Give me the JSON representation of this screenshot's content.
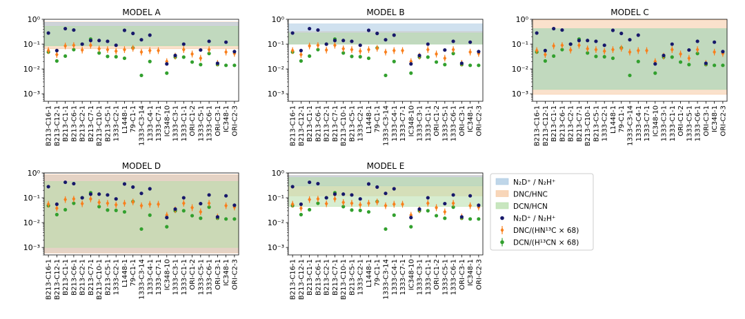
{
  "figure": {
    "legend": {
      "entries": [
        {
          "label": "N₂D⁺ / N₂H⁺",
          "kind": "band",
          "color": "#aac8e2"
        },
        {
          "label": "DNC/HNC",
          "kind": "band",
          "color": "#f6c8a2"
        },
        {
          "label": "DCN/HCN",
          "kind": "band",
          "color": "#b6deaa"
        },
        {
          "label": "N₂D⁺ / N₂H⁺",
          "kind": "marker",
          "color": "#17186a"
        },
        {
          "label": "DNC/(HN¹³C × 68)",
          "kind": "marker",
          "color": "#f97f1c"
        },
        {
          "label": "DCN/(H¹³CN × 68)",
          "kind": "marker",
          "color": "#32a02e"
        }
      ]
    }
  },
  "chart_data": {
    "type": "scatter",
    "yscale": "log",
    "ylim": [
      0.0005,
      1
    ],
    "yticks": [
      {
        "value": 1,
        "label": "10⁰"
      },
      {
        "value": 0.1,
        "label": "10⁻¹"
      },
      {
        "value": 0.01,
        "label": "10⁻²"
      },
      {
        "value": 0.001,
        "label": "10⁻³"
      }
    ],
    "band_colors": {
      "n2d": "#aac8e2",
      "dnc": "#f6c8a2",
      "dcn": "#b6deaa"
    },
    "band_overlap_color": "#d4c3ad",
    "series": [
      {
        "key": "n2d",
        "name": "N₂D⁺ / N₂H⁺",
        "color": "#17186a",
        "points": [
          {
            "cat": "B213-C16-1",
            "value": 0.28
          },
          {
            "cat": "B213-C12-1",
            "value": 0.055
          },
          {
            "cat": "B213-C1-1",
            "value": 0.42
          },
          {
            "cat": "B213-C6-1",
            "value": 0.37
          },
          {
            "cat": "B213-C2-1",
            "value": 0.1
          },
          {
            "cat": "B213-C7-1",
            "value": 0.14
          },
          {
            "cat": "B213-C10-1",
            "value": 0.14
          },
          {
            "cat": "B213-C5-1",
            "value": 0.13
          },
          {
            "cat": "1333-C2-1",
            "value": 0.09
          },
          {
            "cat": "L1448-1",
            "value": 0.36
          },
          {
            "cat": "79-C1-1",
            "value": 0.27
          },
          {
            "cat": "1333-C3-14",
            "value": 0.15
          },
          {
            "cat": "1333-C4-1",
            "value": 0.23
          },
          {
            "cat": "IC348-10",
            "value": 0.016
          },
          {
            "cat": "1333-C3-1",
            "value": 0.035
          },
          {
            "cat": "1333-C1-1",
            "value": 0.1
          },
          {
            "cat": "1333-C5-1",
            "value": 0.058
          },
          {
            "cat": "1333-C6-1",
            "value": 0.13
          },
          {
            "cat": "ORI-C3-1",
            "value": 0.017
          },
          {
            "cat": "IC348-1",
            "value": 0.12
          },
          {
            "cat": "ORI-C2-3",
            "value": 0.05
          }
        ]
      },
      {
        "key": "dnc",
        "name": "DNC/(HN¹³C × 68)",
        "color": "#f97f1c",
        "points": [
          {
            "cat": "B213-C16-1",
            "value": 0.055,
            "err": [
              0.04,
              0.075
            ]
          },
          {
            "cat": "B213-C12-1",
            "value": 0.038,
            "err": [
              0.028,
              0.052
            ]
          },
          {
            "cat": "B213-C1-1",
            "value": 0.085,
            "err": [
              0.062,
              0.115
            ]
          },
          {
            "cat": "B213-C6-1",
            "value": 0.09,
            "err": [
              0.066,
              0.12
            ]
          },
          {
            "cat": "B213-C2-1",
            "value": 0.058,
            "err": [
              0.042,
              0.078
            ]
          },
          {
            "cat": "B213-C7-1",
            "value": 0.09,
            "err": [
              0.066,
              0.12
            ]
          },
          {
            "cat": "B213-C10-1",
            "value": 0.065,
            "err": [
              0.048,
              0.088
            ]
          },
          {
            "cat": "B213-C5-1",
            "value": 0.06,
            "err": [
              0.044,
              0.082
            ]
          },
          {
            "cat": "1333-C2-1",
            "value": 0.052,
            "err": [
              0.038,
              0.07
            ]
          },
          {
            "cat": "L1448-1",
            "value": 0.06,
            "err": [
              0.044,
              0.082
            ]
          },
          {
            "cat": "79-C1-1",
            "value": 0.068,
            "err": [
              0.05,
              0.092
            ]
          },
          {
            "cat": "1333-C3-14",
            "value": 0.048,
            "err": [
              0.035,
              0.065
            ]
          },
          {
            "cat": "1333-C4-1",
            "value": 0.055,
            "err": [
              0.04,
              0.075
            ]
          },
          {
            "cat": "1333-C7-1",
            "value": 0.055,
            "err": [
              0.04,
              0.075
            ]
          },
          {
            "cat": "IC348-10",
            "value": 0.02,
            "err": [
              0.015,
              0.027
            ]
          },
          {
            "cat": "1333-C3-1",
            "value": 0.033,
            "err": [
              0.024,
              0.045
            ]
          },
          {
            "cat": "1333-C1-1",
            "value": 0.06,
            "err": [
              0.044,
              0.082
            ]
          },
          {
            "cat": "ORI-C1-2",
            "value": 0.04,
            "err": [
              0.029,
              0.055
            ]
          },
          {
            "cat": "1333-C5-1",
            "value": 0.027,
            "err": [
              0.02,
              0.037
            ]
          },
          {
            "cat": "1333-C6-1",
            "value": 0.06,
            "err": [
              0.044,
              0.082
            ]
          },
          {
            "cat": "ORI-C3-1",
            "value": 0.017,
            "err": [
              0.013,
              0.023
            ]
          },
          {
            "cat": "IC348-1",
            "value": 0.048,
            "err": [
              0.035,
              0.065
            ]
          },
          {
            "cat": "ORI-C2-3",
            "value": 0.042,
            "err": [
              0.031,
              0.057
            ]
          }
        ]
      },
      {
        "key": "dcn",
        "name": "DCN/(H¹³CN × 68)",
        "color": "#32a02e",
        "points": [
          {
            "cat": "B213-C16-1",
            "value": 0.048
          },
          {
            "cat": "B213-C12-1",
            "value": 0.021
          },
          {
            "cat": "B213-C1-1",
            "value": 0.033
          },
          {
            "cat": "B213-C6-1",
            "value": 0.06
          },
          {
            "cat": "B213-C2-1",
            "value": 0.1
          },
          {
            "cat": "B213-C7-1",
            "value": 0.16
          },
          {
            "cat": "B213-C10-1",
            "value": 0.044
          },
          {
            "cat": "B213-C5-1",
            "value": 0.032
          },
          {
            "cat": "1333-C2-1",
            "value": 0.031
          },
          {
            "cat": "L1448-1",
            "value": 0.027
          },
          {
            "cat": "79-C1-1",
            "value": 0.07
          },
          {
            "cat": "1333-C3-14",
            "value": 0.0055
          },
          {
            "cat": "1333-C4-1",
            "value": 0.02
          },
          {
            "cat": "IC348-10",
            "value": 0.0068
          },
          {
            "cat": "1333-C3-1",
            "value": 0.03
          },
          {
            "cat": "1333-C1-1",
            "value": 0.03
          },
          {
            "cat": "ORI-C1-2",
            "value": 0.019
          },
          {
            "cat": "1333-C5-1",
            "value": 0.015
          },
          {
            "cat": "1333-C6-1",
            "value": 0.042
          },
          {
            "cat": "ORI-C3-1",
            "value": 0.015
          },
          {
            "cat": "IC348-1",
            "value": 0.014
          },
          {
            "cat": "ORI-C2-3",
            "value": 0.014
          }
        ]
      }
    ],
    "panels": [
      {
        "title": "MODEL A",
        "bands": [
          {
            "key": "dnc",
            "range": [
              0.065,
              0.78
            ]
          },
          {
            "key": "n2d",
            "range": [
              0.09,
              0.75
            ]
          },
          {
            "key": "dcn",
            "range": [
              0.085,
              0.52
            ]
          }
        ],
        "categories": [
          "B213-C16-1",
          "B213-C12-1",
          "B213-C1-1",
          "B213-C6-1",
          "B213-C2-1",
          "B213-C7-1",
          "B213-C10-1",
          "B213-C5-1",
          "1333-C2-1",
          "L1448-1",
          "79-C1-1",
          "1333-C3-14",
          "1333-C4-1",
          "1333-C7-1",
          "IC348-10",
          "1333-C3-1",
          "1333-C1-1",
          "ORI-C1-2",
          "1333-C5-1",
          "1333-C6-1",
          "ORI-C3-1",
          "IC348-1",
          "ORI-C2-3"
        ]
      },
      {
        "title": "MODEL B",
        "bands": [
          {
            "key": "dnc",
            "range": [
              0.1,
              0.32
            ]
          },
          {
            "key": "n2d",
            "range": [
              0.1,
              0.65
            ]
          },
          {
            "key": "dcn",
            "range": [
              0.1,
              0.28
            ]
          }
        ],
        "categories": [
          "B213-C16-1",
          "B213-C12-1",
          "B213-C1-1",
          "B213-C6-1",
          "B213-C2-1",
          "B213-C7-1",
          "B213-C10-1",
          "B213-C5-1",
          "1333-C2-1",
          "L1448-1",
          "79-C1-1",
          "1333-C3-14",
          "1333-C4-1",
          "1333-C7-1",
          "IC348-10",
          "1333-C3-1",
          "1333-C1-1",
          "ORI-C1-2",
          "1333-C5-1",
          "1333-C6-1",
          "ORI-C3-1",
          "IC348-1",
          "ORI-C2-3"
        ]
      },
      {
        "title": "MODEL C",
        "bands": [
          {
            "key": "dnc",
            "range": [
              0.00095,
              0.95
            ]
          },
          {
            "key": "n2d",
            "range": [
              0.0015,
              0.42
            ]
          },
          {
            "key": "dcn",
            "range": [
              0.0015,
              0.42
            ]
          }
        ],
        "categories": [
          "B213-C16-1",
          "B213-C12-1",
          "B213-C1-1",
          "B213-C6-1",
          "B213-C2-1",
          "B213-C7-1",
          "B213-C10-1",
          "B213-C5-1",
          "1333-C2-1",
          "L1448-1",
          "79-C1-1",
          "1333-C3-14",
          "1333-C4-1",
          "1333-C7-1",
          "IC348-10",
          "1333-C3-1",
          "1333-C1-1",
          "ORI-C1-2",
          "1333-C5-1",
          "1333-C6-1",
          "ORI-C3-1",
          "IC348-1",
          "ORI-C2-3"
        ]
      },
      {
        "title": "MODEL D",
        "bands": [
          {
            "key": "n2d",
            "range": [
              0.0006,
              0.8
            ]
          },
          {
            "key": "dnc",
            "range": [
              0.0006,
              0.85
            ]
          },
          {
            "key": "dcn",
            "range": [
              0.001,
              0.45
            ]
          }
        ],
        "categories": [
          "B213-C16-1",
          "B213-C12-1",
          "B213-C1-1",
          "B213-C6-1",
          "B213-C2-1",
          "B213-C7-1",
          "B213-C10-1",
          "B213-C5-1",
          "1333-C2-1",
          "L1448-1",
          "79-C1-1",
          "1333-C3-14",
          "1333-C4-1",
          "1333-C7-1",
          "IC348-10",
          "1333-C3-1",
          "1333-C1-1",
          "ORI-C1-2",
          "1333-C5-1",
          "1333-C6-1",
          "ORI-C3-1",
          "IC348-1",
          "ORI-C2-3"
        ]
      },
      {
        "title": "MODEL E",
        "bands": [
          {
            "key": "dnc",
            "range": [
              0.12,
              0.8
            ]
          },
          {
            "key": "n2d",
            "range": [
              0.3,
              0.78
            ]
          },
          {
            "key": "dcn",
            "range": [
              0.045,
              0.65
            ]
          }
        ],
        "categories": [
          "B213-C16-1",
          "B213-C12-1",
          "B213-C1-1",
          "B213-C6-1",
          "B213-C2-1",
          "B213-C7-1",
          "B213-C10-1",
          "B213-C5-1",
          "1333-C2-1",
          "L1448-1",
          "79-C1-1",
          "1333-C3-14",
          "1333-C4-1",
          "1333-C7-1",
          "IC348-10",
          "1333-C3-1",
          "1333-C1-1",
          "ORI-C1-2",
          "1333-C5-1",
          "1333-C6-1",
          "ORI-C3-1",
          "IC348-1",
          "ORI-C2-3"
        ]
      }
    ]
  }
}
